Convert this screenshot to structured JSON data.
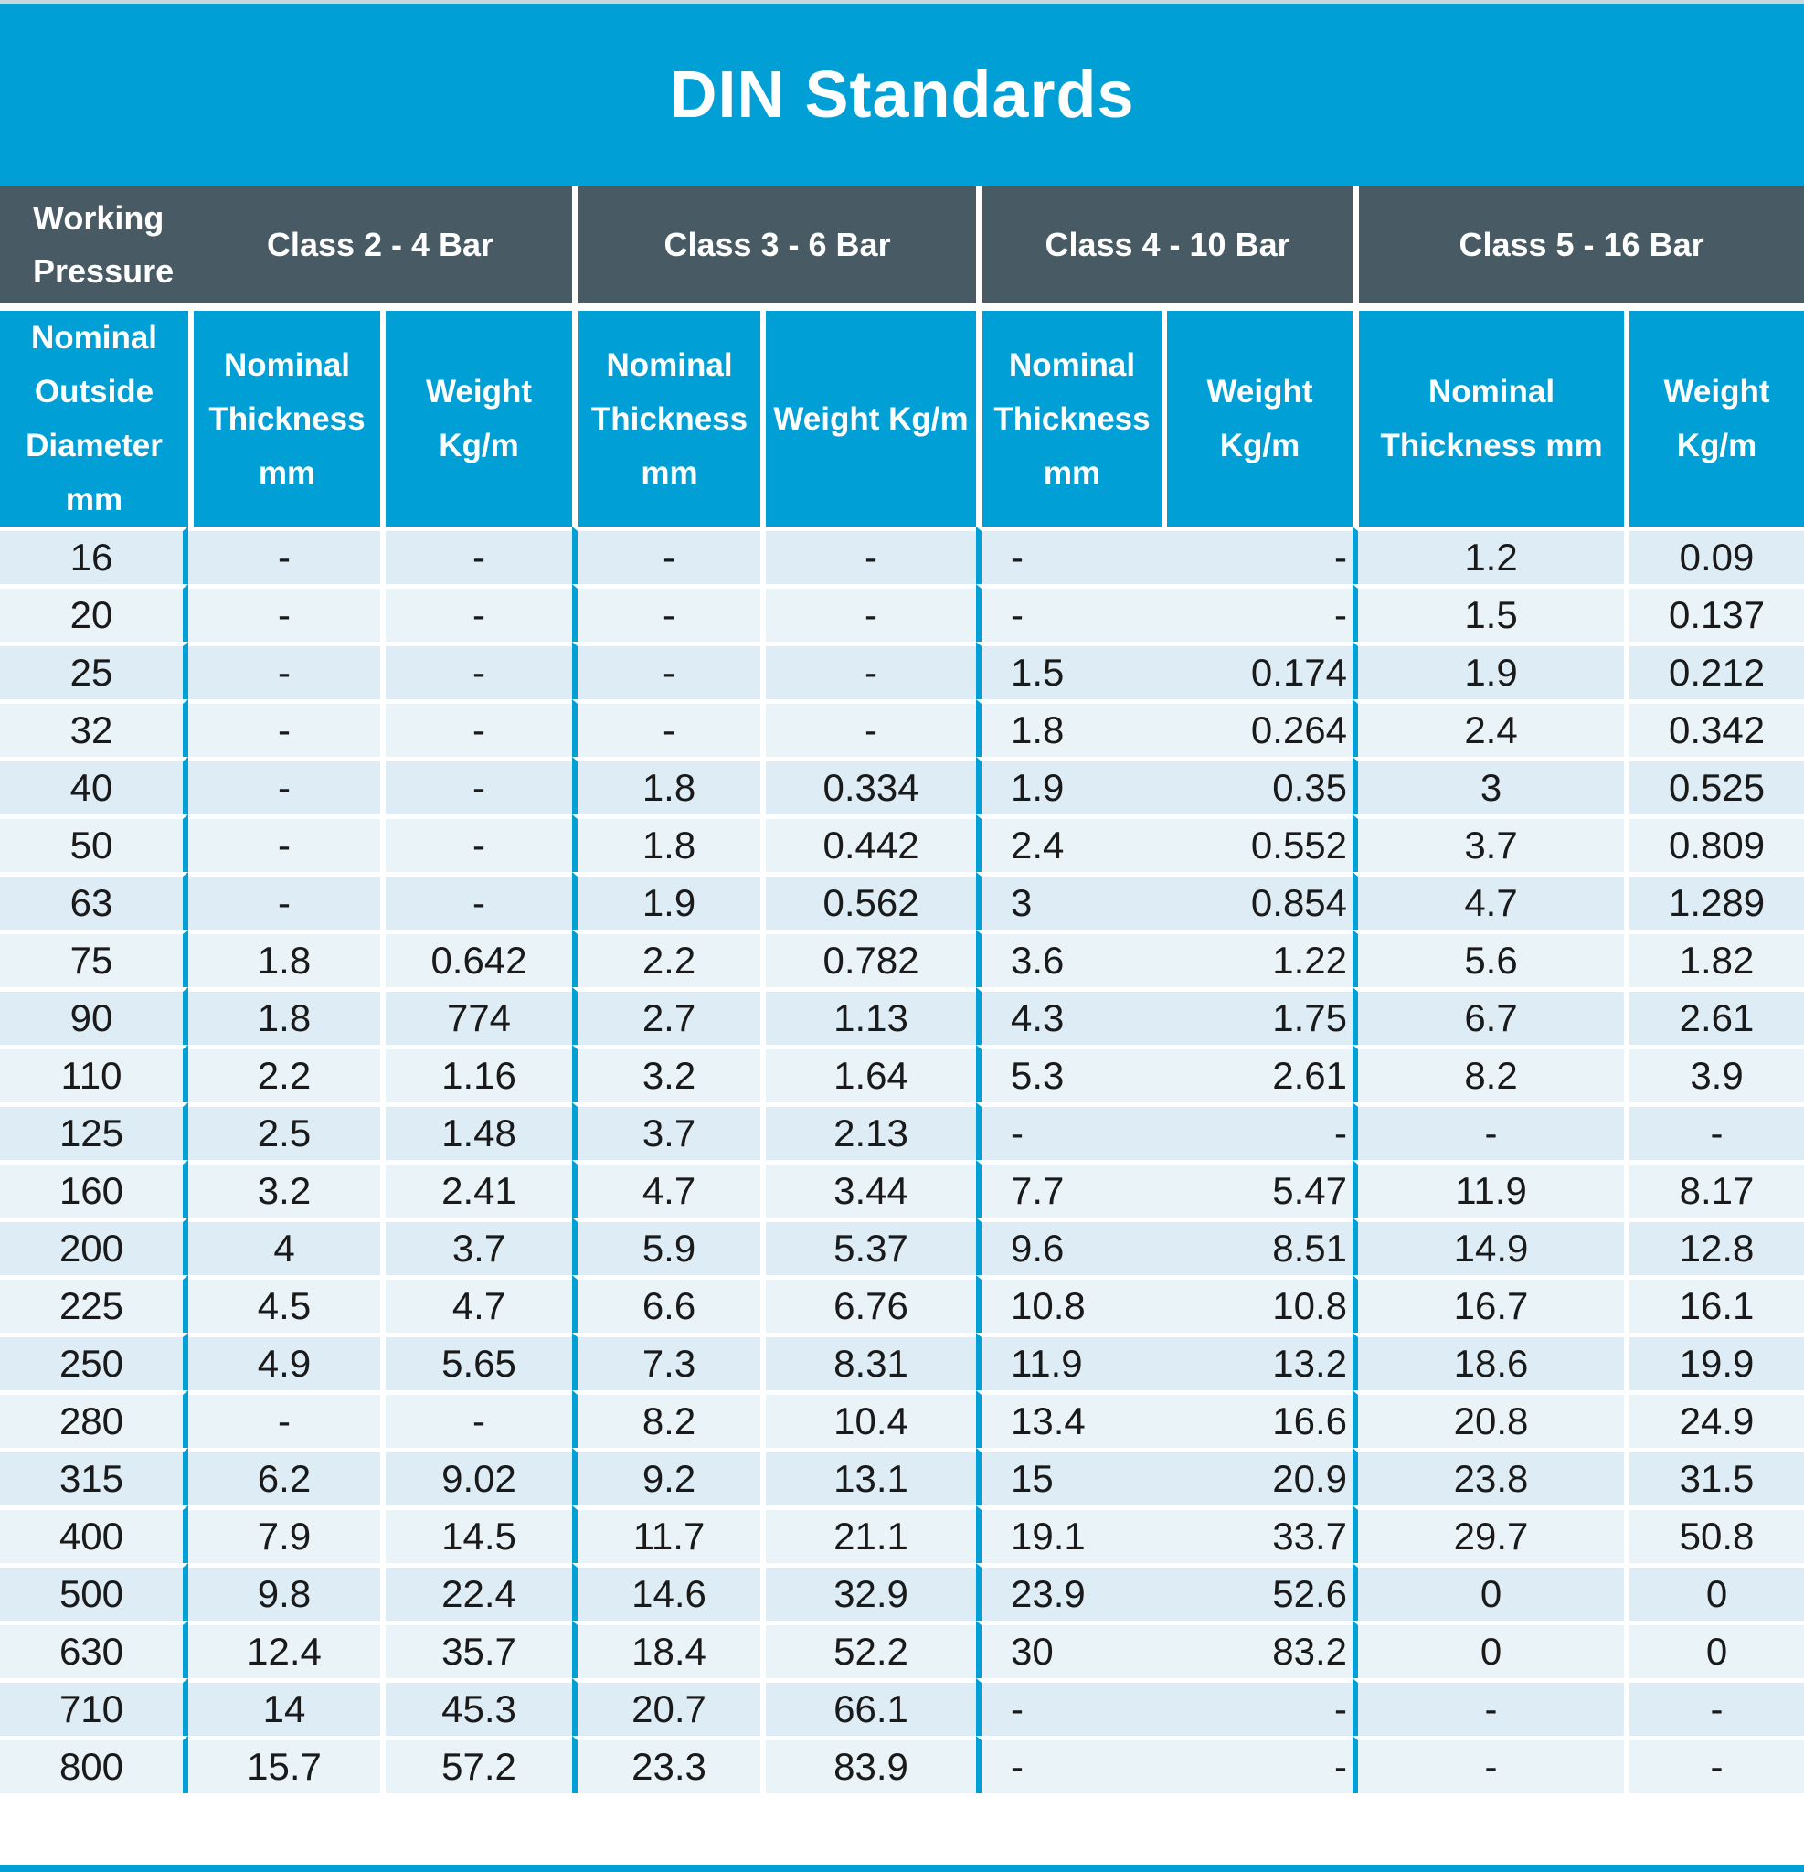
{
  "title": "DIN Standards",
  "header": {
    "working_pressure": [
      "Working",
      "Pressure"
    ],
    "classes": [
      "Class 2 - 4 Bar",
      "Class 3 - 6 Bar",
      "Class 4 - 10 Bar",
      "Class 5 - 16 Bar"
    ],
    "columns": {
      "od": [
        "Nominal",
        "Outside",
        "Diameter",
        "mm"
      ],
      "c2_thickness": [
        "Nominal",
        "Thickness",
        "mm"
      ],
      "c2_weight": [
        "Weight",
        "Kg/m"
      ],
      "c3_thickness": [
        "Nominal",
        "Thickness",
        "mm"
      ],
      "c3_weight": [
        "Weight Kg/m"
      ],
      "c4_thickness": [
        "Nominal",
        "Thickness",
        "mm"
      ],
      "c4_weight": [
        "Weight",
        "Kg/m"
      ],
      "c5_thickness": [
        "Nominal",
        "Thickness mm"
      ],
      "c5_weight": [
        "Weight",
        "Kg/m"
      ]
    }
  },
  "rows": [
    [
      "16",
      "-",
      "-",
      "-",
      "-",
      "-",
      "-",
      "1.2",
      "0.09"
    ],
    [
      "20",
      "-",
      "-",
      "-",
      "-",
      "-",
      "-",
      "1.5",
      "0.137"
    ],
    [
      "25",
      "-",
      "-",
      "-",
      "-",
      "1.5",
      "0.174",
      "1.9",
      "0.212"
    ],
    [
      "32",
      "-",
      "-",
      "-",
      "-",
      "1.8",
      "0.264",
      "2.4",
      "0.342"
    ],
    [
      "40",
      "-",
      "-",
      "1.8",
      "0.334",
      "1.9",
      "0.35",
      "3",
      "0.525"
    ],
    [
      "50",
      "-",
      "-",
      "1.8",
      "0.442",
      "2.4",
      "0.552",
      "3.7",
      "0.809"
    ],
    [
      "63",
      "-",
      "-",
      "1.9",
      "0.562",
      "3",
      "0.854",
      "4.7",
      "1.289"
    ],
    [
      "75",
      "1.8",
      "0.642",
      "2.2",
      "0.782",
      "3.6",
      "1.22",
      "5.6",
      "1.82"
    ],
    [
      "90",
      "1.8",
      "774",
      "2.7",
      "1.13",
      "4.3",
      "1.75",
      "6.7",
      "2.61"
    ],
    [
      "110",
      "2.2",
      "1.16",
      "3.2",
      "1.64",
      "5.3",
      "2.61",
      "8.2",
      "3.9"
    ],
    [
      "125",
      "2.5",
      "1.48",
      "3.7",
      "2.13",
      "-",
      "-",
      "-",
      "-"
    ],
    [
      "160",
      "3.2",
      "2.41",
      "4.7",
      "3.44",
      "7.7",
      "5.47",
      "11.9",
      "8.17"
    ],
    [
      "200",
      "4",
      "3.7",
      "5.9",
      "5.37",
      "9.6",
      "8.51",
      "14.9",
      "12.8"
    ],
    [
      "225",
      "4.5",
      "4.7",
      "6.6",
      "6.76",
      "10.8",
      "10.8",
      "16.7",
      "16.1"
    ],
    [
      "250",
      "4.9",
      "5.65",
      "7.3",
      "8.31",
      "11.9",
      "13.2",
      "18.6",
      "19.9"
    ],
    [
      "280",
      "-",
      "-",
      "8.2",
      "10.4",
      "13.4",
      "16.6",
      "20.8",
      "24.9"
    ],
    [
      "315",
      "6.2",
      "9.02",
      "9.2",
      "13.1",
      "15",
      "20.9",
      "23.8",
      "31.5"
    ],
    [
      "400",
      "7.9",
      "14.5",
      "11.7",
      "21.1",
      "19.1",
      "33.7",
      "29.7",
      "50.8"
    ],
    [
      "500",
      "9.8",
      "22.4",
      "14.6",
      "32.9",
      "23.9",
      "52.6",
      "0",
      "0"
    ],
    [
      "630",
      "12.4",
      "35.7",
      "18.4",
      "52.2",
      "30",
      "83.2",
      "0",
      "0"
    ],
    [
      "710",
      "14",
      "45.3",
      "20.7",
      "66.1",
      "-",
      "-",
      "-",
      "-"
    ],
    [
      "800",
      "15.7",
      "57.2",
      "23.3",
      "83.9",
      "-",
      "-",
      "-",
      "-"
    ]
  ],
  "colors": {
    "title_bar": "#009fd6",
    "pressure_header": "#485a63",
    "column_header": "#009fd6",
    "row_odd": "#ddecf5",
    "row_even": "#e9f3f8"
  }
}
